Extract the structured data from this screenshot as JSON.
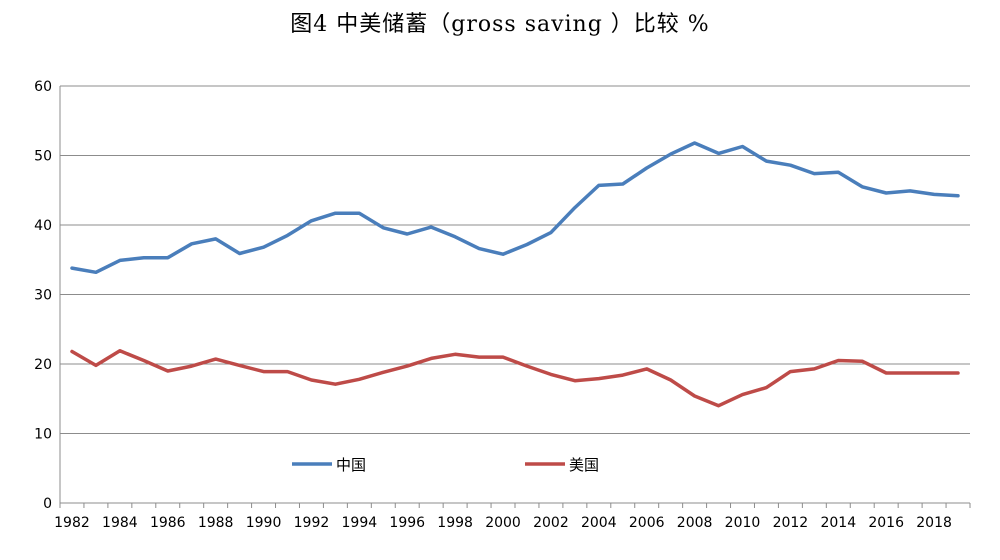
{
  "chart_data": {
    "type": "line",
    "title": "图4 中美储蓄（gross saving ）比较 %",
    "xlabel": "",
    "ylabel": "",
    "x": [
      1982,
      1983,
      1984,
      1985,
      1986,
      1987,
      1988,
      1989,
      1990,
      1991,
      1992,
      1993,
      1994,
      1995,
      1996,
      1997,
      1998,
      1999,
      2000,
      2001,
      2002,
      2003,
      2004,
      2005,
      2006,
      2007,
      2008,
      2009,
      2010,
      2011,
      2012,
      2013,
      2014,
      2015,
      2016,
      2017,
      2018,
      2019
    ],
    "x_tick_labels": [
      "1982",
      "1984",
      "1986",
      "1988",
      "1990",
      "1992",
      "1994",
      "1996",
      "1998",
      "2000",
      "2002",
      "2004",
      "2006",
      "2008",
      "2010",
      "2012",
      "2014",
      "2016",
      "2018"
    ],
    "ylim": [
      0,
      60
    ],
    "y_ticks": [
      0,
      10,
      20,
      30,
      40,
      50,
      60
    ],
    "grid": "horizontal",
    "legend_position": "bottom-left",
    "series": [
      {
        "name": "中国",
        "color": "#4a7ebb",
        "values": [
          33.8,
          33.2,
          34.9,
          35.3,
          35.3,
          37.3,
          38.0,
          35.9,
          36.8,
          38.5,
          40.6,
          41.7,
          41.7,
          39.6,
          38.7,
          39.7,
          38.3,
          36.6,
          35.8,
          37.2,
          38.9,
          42.5,
          45.7,
          45.9,
          48.2,
          50.2,
          51.8,
          50.3,
          51.3,
          49.2,
          48.6,
          47.4,
          47.6,
          45.5,
          44.6,
          44.9,
          44.4,
          44.2
        ]
      },
      {
        "name": "美国",
        "color": "#be4b48",
        "values": [
          21.8,
          19.8,
          21.9,
          20.5,
          19.0,
          19.7,
          20.7,
          19.8,
          18.9,
          18.9,
          17.7,
          17.1,
          17.8,
          18.8,
          19.7,
          20.8,
          21.4,
          21.0,
          21.0,
          19.7,
          18.5,
          17.6,
          17.9,
          18.4,
          19.3,
          17.7,
          15.4,
          14.0,
          15.6,
          16.6,
          18.9,
          19.3,
          20.5,
          20.4,
          18.7,
          18.7,
          18.7,
          18.7
        ]
      }
    ]
  }
}
